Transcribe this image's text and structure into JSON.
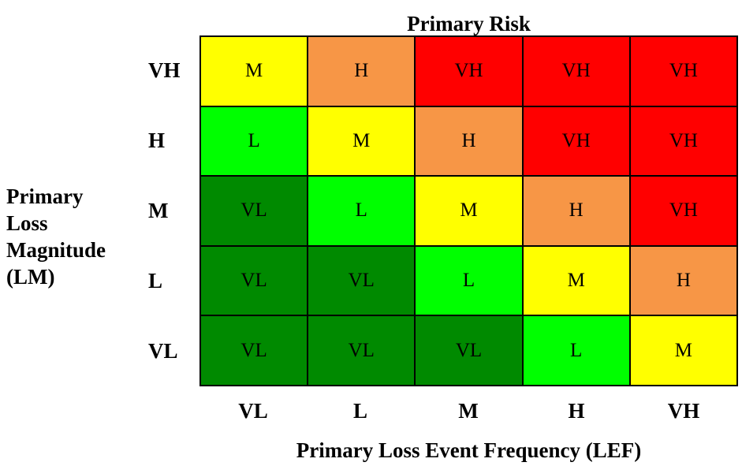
{
  "title": "Primary Risk",
  "y_title": [
    "Primary",
    "Loss",
    "Magnitude",
    "(LM)"
  ],
  "x_title": "Primary Loss Event Frequency (LEF)",
  "row_labels": [
    "VH",
    "H",
    "M",
    "L",
    "VL"
  ],
  "col_labels": [
    "VL",
    "L",
    "M",
    "H",
    "VH"
  ],
  "colors": {
    "VL": "#008a00",
    "L": "#00ff00",
    "M": "#ffff00",
    "H": "#f79646",
    "VH": "#ff0000"
  },
  "matrix": [
    [
      "M",
      "H",
      "VH",
      "VH",
      "VH"
    ],
    [
      "L",
      "M",
      "H",
      "VH",
      "VH"
    ],
    [
      "VL",
      "L",
      "M",
      "H",
      "VH"
    ],
    [
      "VL",
      "VL",
      "L",
      "M",
      "H"
    ],
    [
      "VL",
      "VL",
      "VL",
      "L",
      "M"
    ]
  ]
}
